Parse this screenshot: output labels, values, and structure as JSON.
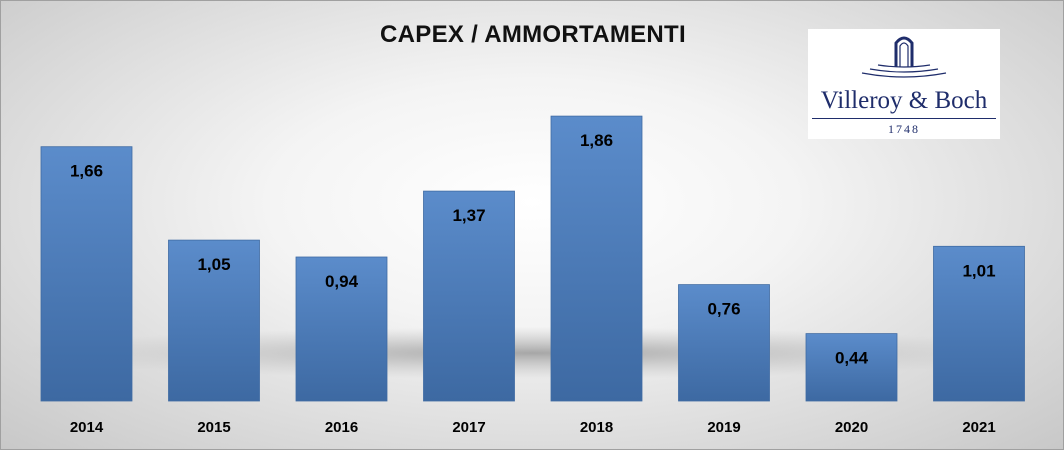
{
  "chart_data": {
    "type": "bar",
    "title": "CAPEX / AMMORTAMENTI",
    "categories": [
      "2014",
      "2015",
      "2016",
      "2017",
      "2018",
      "2019",
      "2020",
      "2021"
    ],
    "values": [
      1.66,
      1.05,
      0.94,
      1.37,
      1.86,
      0.76,
      0.44,
      1.01
    ],
    "value_labels": [
      "1,66",
      "1,05",
      "0,94",
      "1,37",
      "1,86",
      "0,76",
      "0,44",
      "1,01"
    ],
    "ylim": [
      0,
      1.88
    ],
    "grid": false,
    "legend": "none",
    "bar_color": "#4f81bd",
    "bar_color_dark": "#3f6ba3"
  },
  "logo": {
    "name": "Villeroy & Boch",
    "year": "1748",
    "color": "#1f2d6b"
  }
}
